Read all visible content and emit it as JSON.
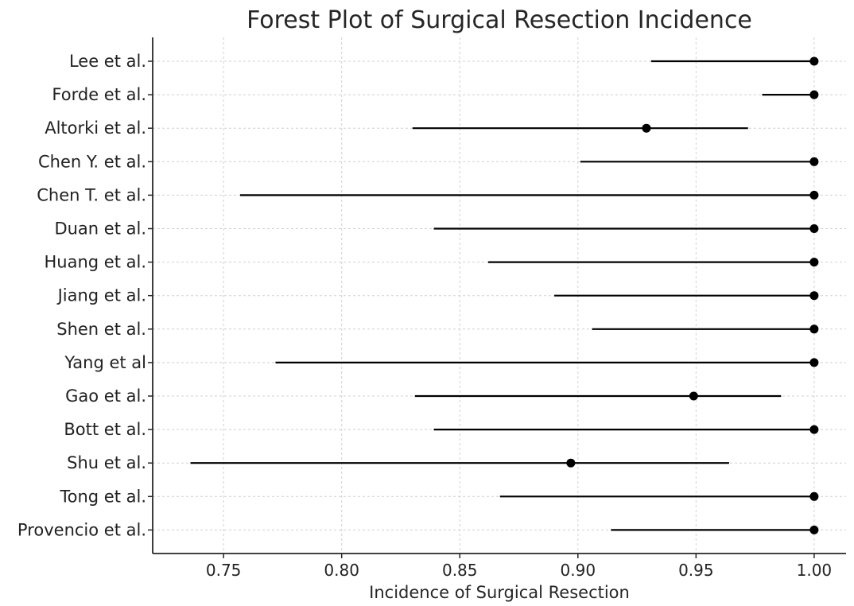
{
  "chart_data": {
    "type": "forest",
    "title": "Forest Plot of Surgical Resection Incidence",
    "xlabel": "Incidence of Surgical Resection",
    "ylabel": "",
    "xlim": [
      0.72,
      1.0135
    ],
    "xticks": [
      0.75,
      0.8,
      0.85,
      0.9,
      0.95,
      1.0
    ],
    "xtick_labels": [
      "0.75",
      "0.80",
      "0.85",
      "0.90",
      "0.95",
      "1.00"
    ],
    "grid": true,
    "studies": [
      {
        "label": "Lee et al.",
        "estimate": 1.0,
        "lower": 0.931,
        "upper": 1.0
      },
      {
        "label": "Forde et al.",
        "estimate": 1.0,
        "lower": 0.978,
        "upper": 1.0
      },
      {
        "label": "Altorki et al.",
        "estimate": 0.929,
        "lower": 0.83,
        "upper": 0.972
      },
      {
        "label": "Chen Y. et al.",
        "estimate": 1.0,
        "lower": 0.901,
        "upper": 1.0
      },
      {
        "label": "Chen T. et al.",
        "estimate": 1.0,
        "lower": 0.757,
        "upper": 1.0
      },
      {
        "label": "Duan et al.",
        "estimate": 1.0,
        "lower": 0.839,
        "upper": 1.0
      },
      {
        "label": "Huang et al.",
        "estimate": 1.0,
        "lower": 0.862,
        "upper": 1.0
      },
      {
        "label": "Jiang et al.",
        "estimate": 1.0,
        "lower": 0.89,
        "upper": 1.0
      },
      {
        "label": "Shen et al.",
        "estimate": 1.0,
        "lower": 0.906,
        "upper": 1.0
      },
      {
        "label": "Yang et al",
        "estimate": 1.0,
        "lower": 0.772,
        "upper": 1.0
      },
      {
        "label": "Gao et al.",
        "estimate": 0.949,
        "lower": 0.831,
        "upper": 0.986
      },
      {
        "label": "Bott et al.",
        "estimate": 1.0,
        "lower": 0.839,
        "upper": 1.0
      },
      {
        "label": "Shu et al.",
        "estimate": 0.897,
        "lower": 0.736,
        "upper": 0.964
      },
      {
        "label": "Tong et al.",
        "estimate": 1.0,
        "lower": 0.867,
        "upper": 1.0
      },
      {
        "label": "Provencio et al.",
        "estimate": 1.0,
        "lower": 0.914,
        "upper": 1.0
      }
    ],
    "colors": {
      "marker": "#000000",
      "interval": "#000000",
      "grid": "#d0d0d0",
      "axis": "#262626",
      "text": "#222222"
    }
  }
}
